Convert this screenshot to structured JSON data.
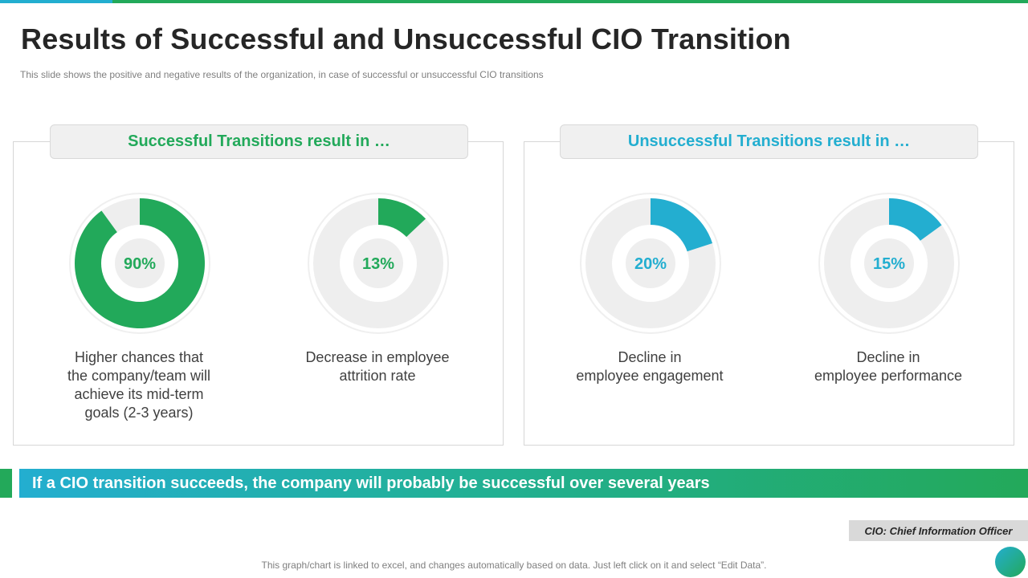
{
  "title": "Results of Successful and Unsuccessful CIO Transition",
  "subtitle": "This slide shows the positive and negative results of the organization, in case of successful or unsuccessful CIO transitions",
  "panels": [
    {
      "header": "Successful Transitions result in …"
    },
    {
      "header": "Unsuccessful Transitions result in …"
    }
  ],
  "banner": "If a CIO transition succeeds, the company will probably be successful over several years",
  "note": "CIO: Chief Information Officer",
  "footer": "This graph/chart is linked to excel, and changes automatically based on data. Just left click on it and select “Edit Data”.",
  "colors": {
    "green": "#22a95a",
    "teal": "#23aed0",
    "track": "#eeeeee",
    "title": "#262626"
  },
  "chart_data": [
    {
      "type": "pie",
      "variant": "donut",
      "value": 90,
      "value_label": "90%",
      "label": "Higher chances that the company/team will achieve its mid-term goals (2-3 years)",
      "label_lines": [
        "Higher chances that",
        "the company/team will",
        "achieve its mid-term",
        "goals (2-3 years)"
      ],
      "color": "#22a95a"
    },
    {
      "type": "pie",
      "variant": "donut",
      "value": 13,
      "value_label": "13%",
      "label": "Decrease in employee attrition rate",
      "label_lines": [
        "Decrease in employee",
        "attrition rate"
      ],
      "color": "#22a95a"
    },
    {
      "type": "pie",
      "variant": "donut",
      "value": 20,
      "value_label": "20%",
      "label": "Decline in employee engagement",
      "label_lines": [
        "Decline in",
        "employee engagement"
      ],
      "color": "#23aed0"
    },
    {
      "type": "pie",
      "variant": "donut",
      "value": 15,
      "value_label": "15%",
      "label": "Decline in employee performance",
      "label_lines": [
        "Decline in",
        "employee performance"
      ],
      "color": "#23aed0"
    }
  ]
}
